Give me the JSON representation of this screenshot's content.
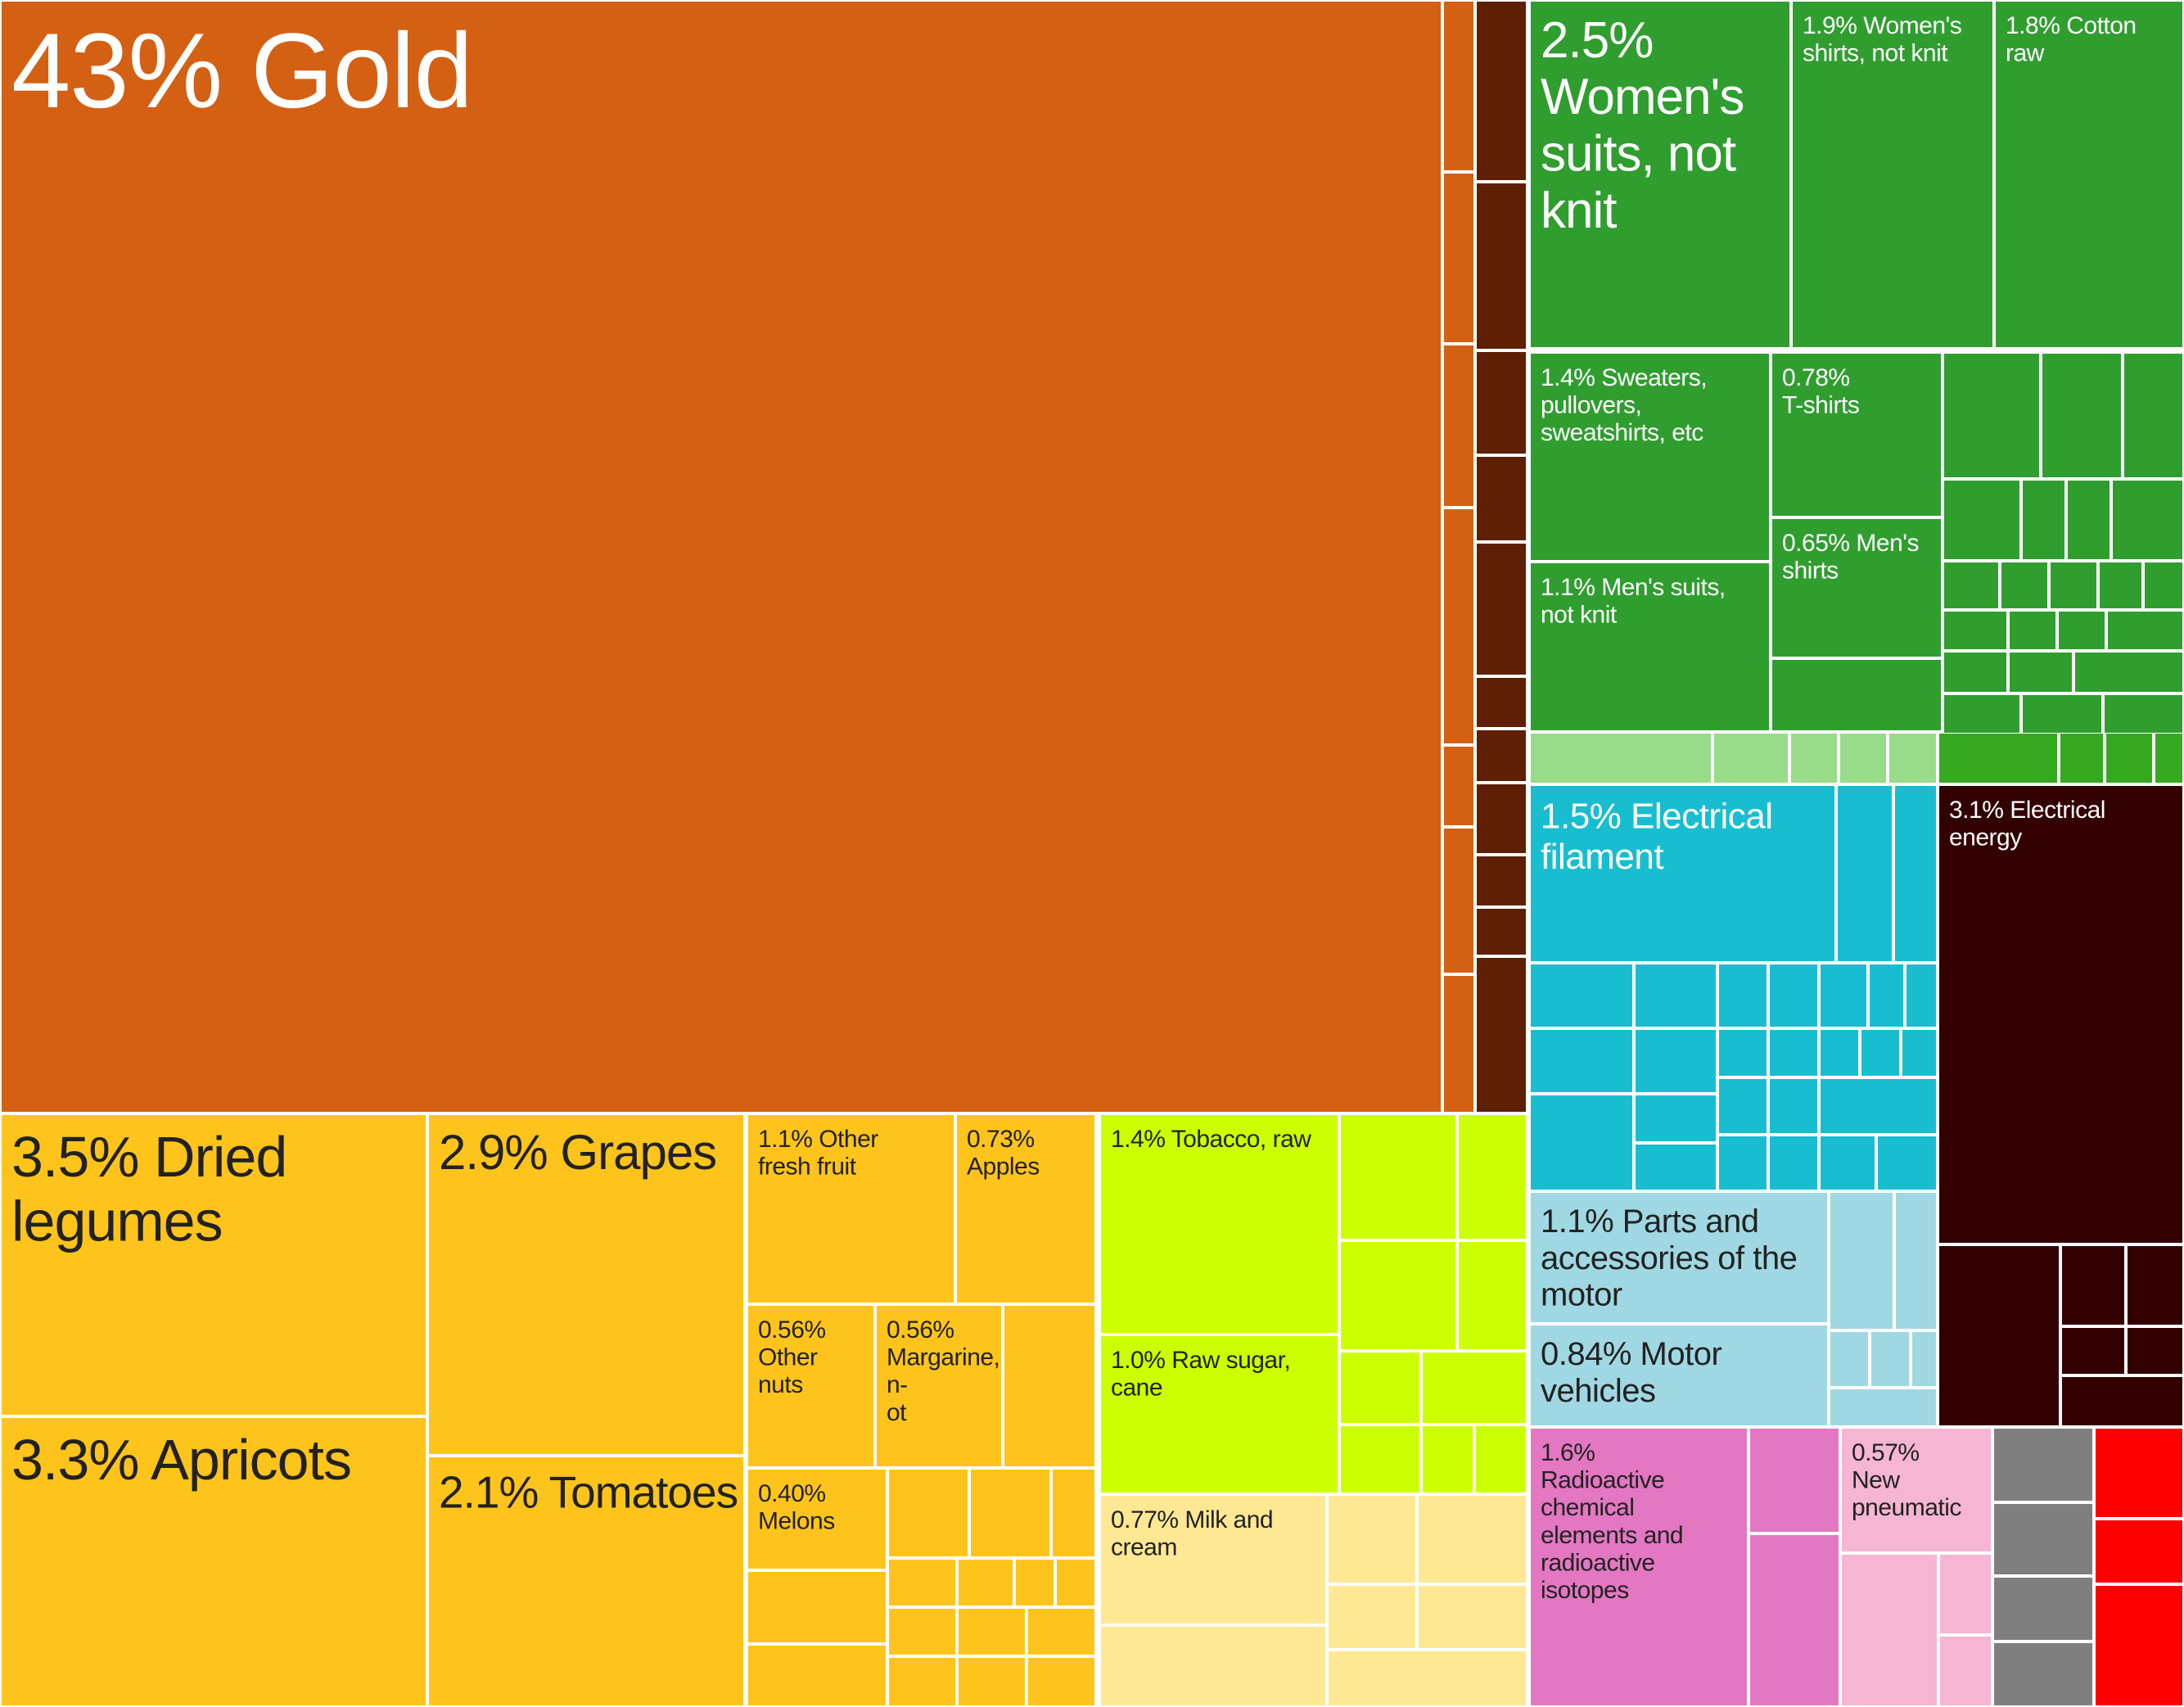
{
  "chart_data": {
    "type": "treemap",
    "unit": "%",
    "colors": {
      "gold": "#D46013",
      "fruit": "#FFC41C",
      "food": "#CCFF00",
      "dairy": "#FFE894",
      "textiles": "#2F9E2F",
      "textiles_light": "#98DC8A",
      "textiles_mid": "#36A920",
      "electrical": "#18BECF",
      "vehicles": "#9FD8E3",
      "energy": "#330000",
      "darkbrown": "#5E1F05",
      "chemicals": "#E377C2",
      "rubber": "#F5B5D3",
      "gray": "#7F7F7F",
      "red": "#FF0000"
    },
    "items": [
      {
        "value": "43%",
        "label": "Gold",
        "group": "gold"
      },
      {
        "value": "3.5%",
        "label": "Dried legumes",
        "group": "fruit"
      },
      {
        "value": "3.3%",
        "label": "Apricots",
        "group": "fruit"
      },
      {
        "value": "2.9%",
        "label": "Grapes",
        "group": "fruit"
      },
      {
        "value": "2.1%",
        "label": "Tomatoes",
        "group": "fruit"
      },
      {
        "value": "1.1%",
        "label": "Other fresh fruit",
        "group": "fruit"
      },
      {
        "value": "0.73%",
        "label": "Apples",
        "group": "fruit"
      },
      {
        "value": "0.56%",
        "label": "Other nuts",
        "group": "fruit"
      },
      {
        "value": "0.56%",
        "label": "Margarine, n-ot",
        "group": "fruit"
      },
      {
        "value": "0.40%",
        "label": "Melons",
        "group": "fruit"
      },
      {
        "value": "1.4%",
        "label": "Tobacco, raw",
        "group": "food"
      },
      {
        "value": "1.0%",
        "label": "Raw sugar, cane",
        "group": "food"
      },
      {
        "value": "0.77%",
        "label": "Milk and cream",
        "group": "dairy"
      },
      {
        "value": "2.5%",
        "label": "Women's suits, not knit",
        "group": "textiles"
      },
      {
        "value": "1.9%",
        "label": "Women's shirts, not knit",
        "group": "textiles"
      },
      {
        "value": "1.8%",
        "label": "Cotton raw",
        "group": "textiles"
      },
      {
        "value": "1.4%",
        "label": "Sweaters, pullovers, sweatshirts, etc",
        "group": "textiles"
      },
      {
        "value": "0.78%",
        "label": "T-shirts",
        "group": "textiles"
      },
      {
        "value": "0.65%",
        "label": "Men's shirts",
        "group": "textiles"
      },
      {
        "value": "1.1%",
        "label": "Men's suits, not knit",
        "group": "textiles"
      },
      {
        "value": "1.5%",
        "label": "Electrical filament",
        "group": "electrical"
      },
      {
        "value": "3.1%",
        "label": "Electrical energy",
        "group": "energy"
      },
      {
        "value": "1.1%",
        "label": "Parts and accessories of the motor",
        "group": "vehicles"
      },
      {
        "value": "0.84%",
        "label": "Motor vehicles",
        "group": "vehicles"
      },
      {
        "value": "1.6%",
        "label": "Radioactive chemical elements and radioactive isotopes",
        "group": "chemicals"
      },
      {
        "value": "0.57%",
        "label": "New pneumatic",
        "group": "rubber"
      }
    ]
  }
}
